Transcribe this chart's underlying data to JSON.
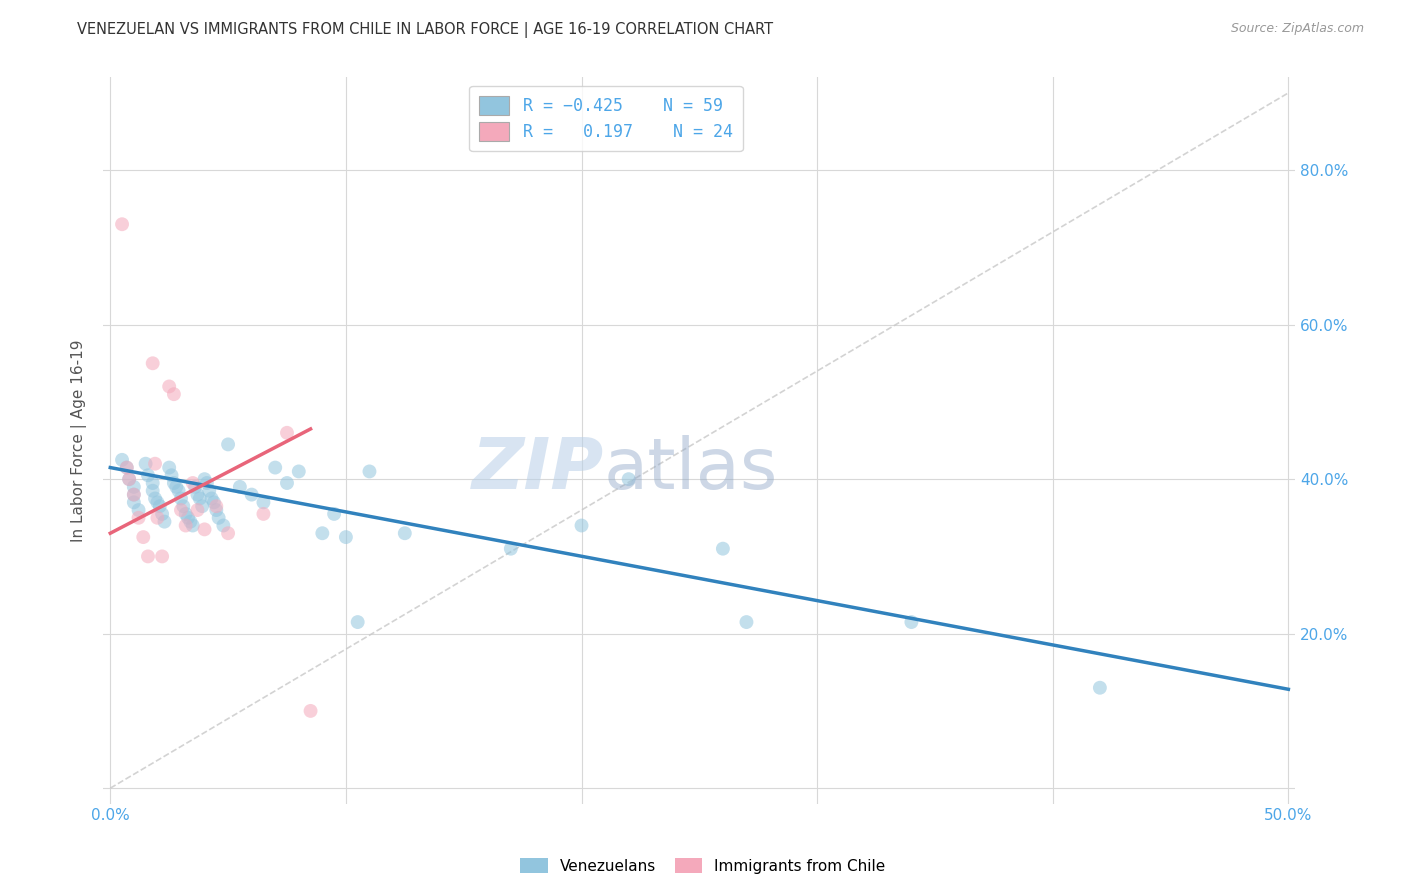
{
  "title": "VENEZUELAN VS IMMIGRANTS FROM CHILE IN LABOR FORCE | AGE 16-19 CORRELATION CHART",
  "source": "Source: ZipAtlas.com",
  "ylabel": "In Labor Force | Age 16-19",
  "xlim": [
    0.0,
    0.5
  ],
  "ylim": [
    0.0,
    0.9
  ],
  "xticks": [
    0.0,
    0.1,
    0.2,
    0.3,
    0.4,
    0.5
  ],
  "xticklabels": [
    "0.0%",
    "",
    "",
    "",
    "",
    "50.0%"
  ],
  "yticks": [
    0.0,
    0.2,
    0.4,
    0.6,
    0.8
  ],
  "yticklabels_right": [
    "",
    "20.0%",
    "40.0%",
    "60.0%",
    "80.0%"
  ],
  "blue_color": "#92c5de",
  "pink_color": "#f4a9bb",
  "blue_line_color": "#3182bd",
  "pink_line_color": "#e8657a",
  "dashed_line_color": "#c8c8c8",
  "venezuelan_x": [
    0.005,
    0.007,
    0.008,
    0.01,
    0.01,
    0.01,
    0.012,
    0.015,
    0.016,
    0.018,
    0.018,
    0.019,
    0.02,
    0.021,
    0.022,
    0.023,
    0.025,
    0.026,
    0.027,
    0.028,
    0.029,
    0.03,
    0.031,
    0.032,
    0.033,
    0.034,
    0.035,
    0.036,
    0.037,
    0.038,
    0.039,
    0.04,
    0.041,
    0.042,
    0.043,
    0.044,
    0.045,
    0.046,
    0.048,
    0.05,
    0.055,
    0.06,
    0.065,
    0.07,
    0.075,
    0.08,
    0.09,
    0.095,
    0.1,
    0.105,
    0.11,
    0.125,
    0.17,
    0.2,
    0.22,
    0.26,
    0.27,
    0.34,
    0.42
  ],
  "venezuelan_y": [
    0.425,
    0.415,
    0.4,
    0.39,
    0.38,
    0.37,
    0.36,
    0.42,
    0.405,
    0.395,
    0.385,
    0.375,
    0.37,
    0.365,
    0.355,
    0.345,
    0.415,
    0.405,
    0.395,
    0.39,
    0.385,
    0.375,
    0.365,
    0.355,
    0.35,
    0.345,
    0.34,
    0.39,
    0.38,
    0.375,
    0.365,
    0.4,
    0.395,
    0.385,
    0.375,
    0.37,
    0.36,
    0.35,
    0.34,
    0.445,
    0.39,
    0.38,
    0.37,
    0.415,
    0.395,
    0.41,
    0.33,
    0.355,
    0.325,
    0.215,
    0.41,
    0.33,
    0.31,
    0.34,
    0.4,
    0.31,
    0.215,
    0.215,
    0.13
  ],
  "chile_x": [
    0.005,
    0.007,
    0.008,
    0.01,
    0.012,
    0.014,
    0.016,
    0.018,
    0.019,
    0.02,
    0.022,
    0.025,
    0.027,
    0.03,
    0.032,
    0.035,
    0.037,
    0.04,
    0.045,
    0.05,
    0.065,
    0.075,
    0.085
  ],
  "chile_y": [
    0.73,
    0.415,
    0.4,
    0.38,
    0.35,
    0.325,
    0.3,
    0.55,
    0.42,
    0.35,
    0.3,
    0.52,
    0.51,
    0.36,
    0.34,
    0.395,
    0.36,
    0.335,
    0.365,
    0.33,
    0.355,
    0.46,
    0.1
  ],
  "marker_size": 100,
  "alpha": 0.55,
  "blue_line_x": [
    0.0,
    0.5
  ],
  "blue_line_y": [
    0.415,
    0.128
  ],
  "pink_line_x": [
    0.0,
    0.085
  ],
  "pink_line_y": [
    0.33,
    0.465
  ],
  "dash_line_x": [
    0.0,
    0.5
  ],
  "dash_line_y": [
    0.0,
    0.9
  ]
}
